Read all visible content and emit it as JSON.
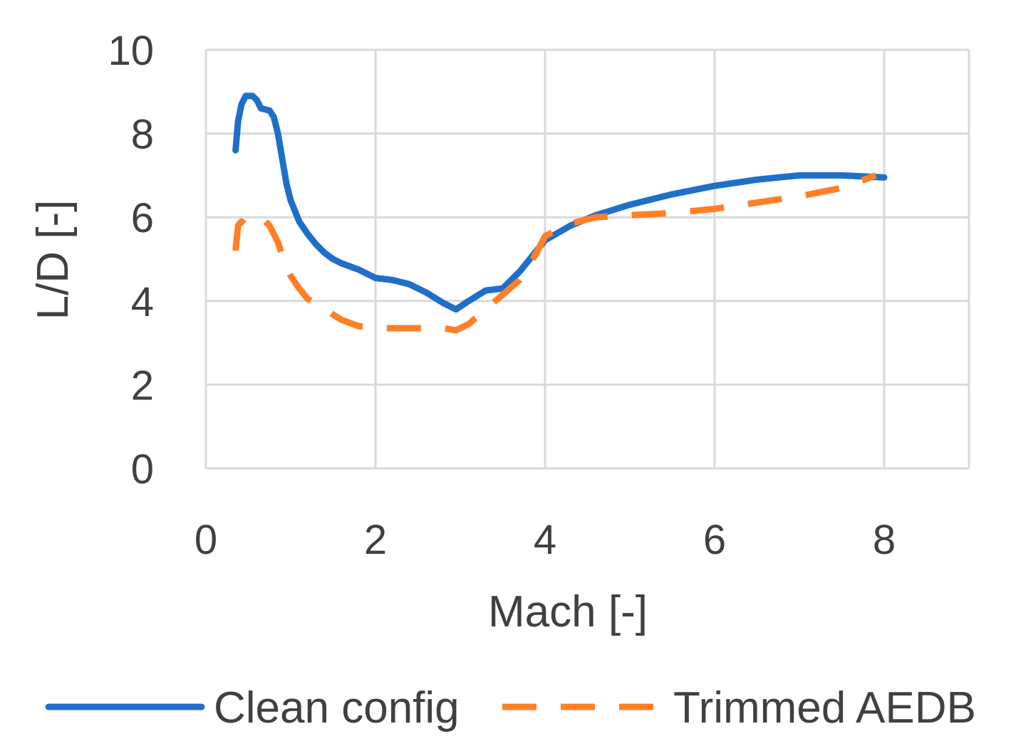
{
  "chart_data": {
    "type": "line",
    "title": "",
    "xlabel": "Mach [-]",
    "ylabel": "L/D [-]",
    "xlim": [
      0,
      9
    ],
    "ylim": [
      0,
      10
    ],
    "xticks": [
      0,
      2,
      4,
      6,
      8
    ],
    "yticks": [
      0,
      2,
      4,
      6,
      8,
      10
    ],
    "grid": true,
    "legend": "bottom",
    "series": [
      {
        "name": "Clean config",
        "color": "#1f6fc9",
        "style": "solid",
        "x": [
          0.35,
          0.38,
          0.42,
          0.47,
          0.55,
          0.6,
          0.65,
          0.75,
          0.8,
          0.85,
          0.9,
          0.95,
          1.0,
          1.1,
          1.2,
          1.3,
          1.4,
          1.5,
          1.6,
          1.8,
          2.0,
          2.2,
          2.4,
          2.6,
          2.8,
          2.95,
          3.1,
          3.3,
          3.5,
          3.7,
          3.9,
          4.0,
          4.3,
          4.6,
          5.0,
          5.5,
          6.0,
          6.5,
          7.0,
          7.5,
          8.0
        ],
        "y": [
          7.6,
          8.3,
          8.7,
          8.9,
          8.9,
          8.8,
          8.6,
          8.55,
          8.4,
          8.0,
          7.4,
          6.8,
          6.4,
          5.9,
          5.6,
          5.35,
          5.15,
          5.0,
          4.9,
          4.75,
          4.55,
          4.5,
          4.4,
          4.2,
          3.95,
          3.8,
          4.0,
          4.25,
          4.3,
          4.7,
          5.2,
          5.45,
          5.8,
          6.05,
          6.3,
          6.55,
          6.75,
          6.9,
          7.0,
          7.0,
          6.95
        ]
      },
      {
        "name": "Trimmed AEDB",
        "color": "#ff7f27",
        "style": "dashed",
        "x": [
          0.35,
          0.38,
          0.42,
          0.5,
          0.6,
          0.7,
          0.75,
          0.8,
          0.85,
          0.9,
          0.95,
          1.0,
          1.1,
          1.2,
          1.4,
          1.6,
          1.8,
          2.0,
          2.2,
          2.5,
          2.8,
          2.95,
          3.1,
          3.3,
          3.5,
          3.7,
          3.9,
          4.0,
          4.3,
          4.6,
          5.0,
          5.5,
          6.0,
          6.5,
          7.0,
          7.5,
          7.9
        ],
        "y": [
          5.2,
          5.8,
          5.9,
          5.75,
          5.8,
          5.9,
          5.8,
          5.6,
          5.4,
          5.1,
          4.8,
          4.6,
          4.3,
          4.05,
          3.8,
          3.55,
          3.4,
          3.35,
          3.35,
          3.35,
          3.35,
          3.3,
          3.45,
          3.8,
          4.15,
          4.5,
          5.15,
          5.55,
          5.85,
          6.0,
          6.05,
          6.1,
          6.2,
          6.35,
          6.5,
          6.7,
          7.0
        ]
      }
    ]
  }
}
